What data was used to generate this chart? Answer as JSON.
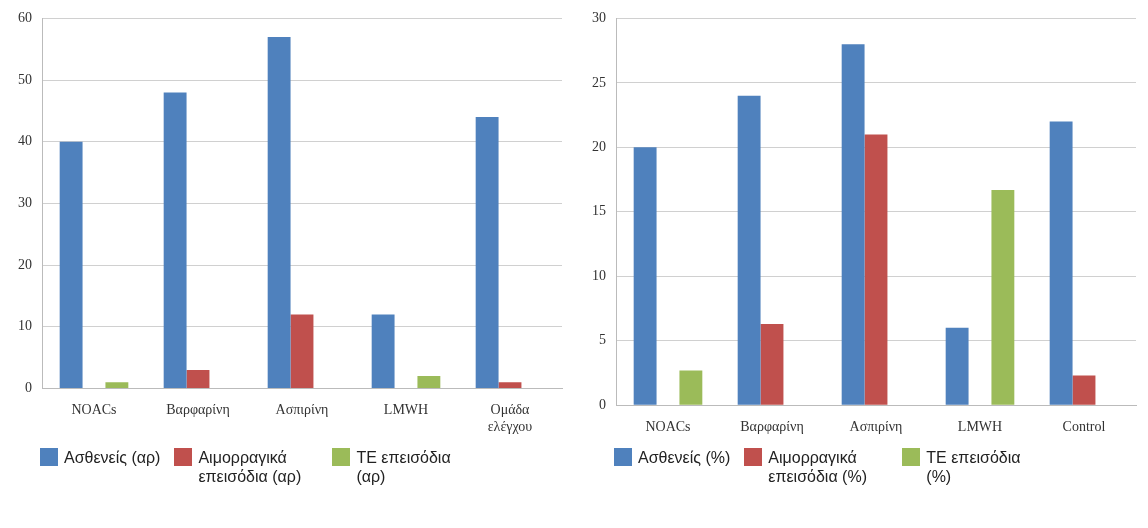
{
  "chart_data": [
    {
      "type": "bar",
      "categories": [
        "NOACs",
        "Βαρφαρίνη",
        "Ασπιρίνη",
        "LMWH",
        "Ομάδα ελέγχου"
      ],
      "series": [
        {
          "name": "Ασθενείς (αρ)",
          "color": "#4f81bd",
          "values": [
            40,
            48,
            57,
            12,
            44
          ]
        },
        {
          "name": "Αιμορραγικά επεισόδια (αρ)",
          "color": "#c0504d",
          "values": [
            0,
            3,
            12,
            0,
            1
          ]
        },
        {
          "name": "ΤΕ επεισόδια (αρ)",
          "color": "#9bbb59",
          "values": [
            1,
            0,
            0,
            2,
            0
          ]
        }
      ],
      "ylim": [
        0,
        60
      ],
      "yticks": [
        0,
        10,
        20,
        30,
        40,
        50,
        60
      ],
      "grid": "y",
      "legend": "bottom"
    },
    {
      "type": "bar",
      "categories": [
        "NOACs",
        "Βαρφαρίνη",
        "Ασπιρίνη",
        "LMWH",
        "Control"
      ],
      "series": [
        {
          "name": "Ασθενείς (%)",
          "color": "#4f81bd",
          "values": [
            20,
            24,
            28,
            6,
            22
          ]
        },
        {
          "name": "Αιμορραγικά επεισόδια (%)",
          "color": "#c0504d",
          "values": [
            0,
            6.3,
            21,
            0,
            2.3
          ]
        },
        {
          "name": "ΤΕ επεισόδια (%)",
          "color": "#9bbb59",
          "values": [
            2.7,
            0,
            0,
            16.7,
            0
          ]
        }
      ],
      "ylim": [
        0,
        30
      ],
      "yticks": [
        0,
        5,
        10,
        15,
        20,
        25,
        30
      ],
      "grid": "y",
      "legend": "bottom"
    }
  ]
}
